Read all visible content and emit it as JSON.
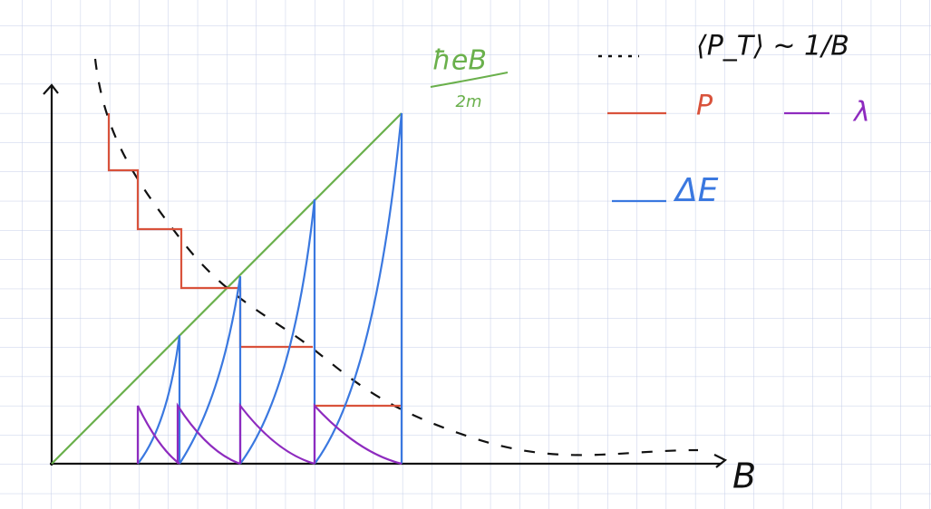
{
  "labels": {
    "slope_numerator": "ħeB",
    "slope_denominator": "2m",
    "average": "⟨P_T⟩ ~ 1/B",
    "legend_p": "P",
    "legend_lambda": "λ",
    "legend_delta_e": "ΔE",
    "x_axis": "B"
  }
}
